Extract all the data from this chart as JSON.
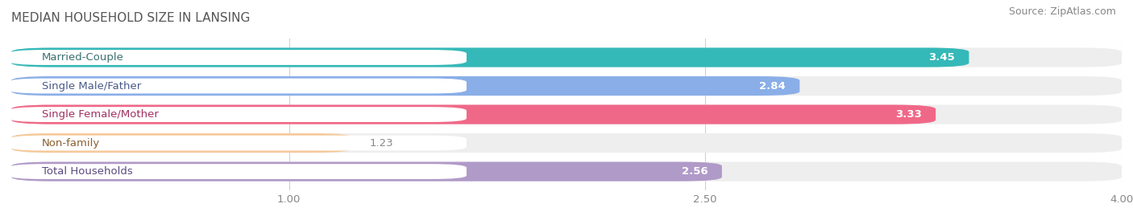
{
  "title": "MEDIAN HOUSEHOLD SIZE IN LANSING",
  "source": "Source: ZipAtlas.com",
  "categories": [
    "Married-Couple",
    "Single Male/Father",
    "Single Female/Mother",
    "Non-family",
    "Total Households"
  ],
  "values": [
    3.45,
    2.84,
    3.33,
    1.23,
    2.56
  ],
  "bar_colors": [
    "#35b8b8",
    "#8aaee8",
    "#f06888",
    "#f5c99a",
    "#b09ac8"
  ],
  "label_text_colors": [
    "#3a7070",
    "#4a5a8a",
    "#a03060",
    "#8a6030",
    "#5a4a80"
  ],
  "background_color": "#ffffff",
  "bar_bg_color": "#eeeeee",
  "xlim": [
    0,
    4.0
  ],
  "xticks": [
    1.0,
    2.5,
    4.0
  ],
  "xtick_labels": [
    "1.00",
    "2.50",
    "4.00"
  ],
  "title_fontsize": 11,
  "label_fontsize": 9.5,
  "value_fontsize": 9.5,
  "source_fontsize": 9
}
